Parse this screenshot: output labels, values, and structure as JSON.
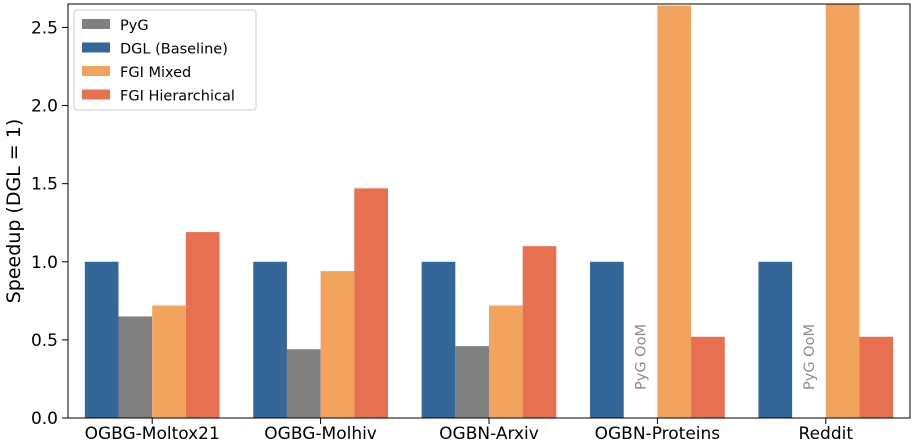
{
  "chart_data": {
    "type": "bar",
    "title": "",
    "xlabel": "",
    "ylabel": "Speedup (DGL = 1)",
    "ylim": [
      0,
      2.65
    ],
    "yticks": [
      "0.0",
      "0.5",
      "1.0",
      "1.5",
      "2.0",
      "2.5"
    ],
    "grid": false,
    "legend_position": "top-left",
    "categories": [
      "OGBG-Moltox21",
      "OGBG-Molhiv",
      "OGBN-Arxiv",
      "OGBN-Proteins",
      "Reddit"
    ],
    "series": [
      {
        "name": "DGL (Baseline)",
        "color": "#336699",
        "values": [
          1.0,
          1.0,
          1.0,
          1.0,
          1.0
        ]
      },
      {
        "name": "PyG",
        "color": "#808080",
        "values": [
          0.65,
          0.44,
          0.46,
          null,
          null
        ]
      },
      {
        "name": "FGI Mixed",
        "color": "#f2a35e",
        "values": [
          0.72,
          0.94,
          0.72,
          2.64,
          2.65
        ]
      },
      {
        "name": "FGI Hierarchical",
        "color": "#e67050",
        "values": [
          1.19,
          1.47,
          1.1,
          0.52,
          0.52
        ]
      }
    ],
    "legend_order": [
      "PyG",
      "DGL (Baseline)",
      "FGI Mixed",
      "FGI Hierarchical"
    ],
    "annotations": [
      {
        "text": "PyG OoM",
        "category": "OGBN-Proteins",
        "series": "PyG"
      },
      {
        "text": "PyG OoM",
        "category": "Reddit",
        "series": "PyG"
      }
    ]
  }
}
